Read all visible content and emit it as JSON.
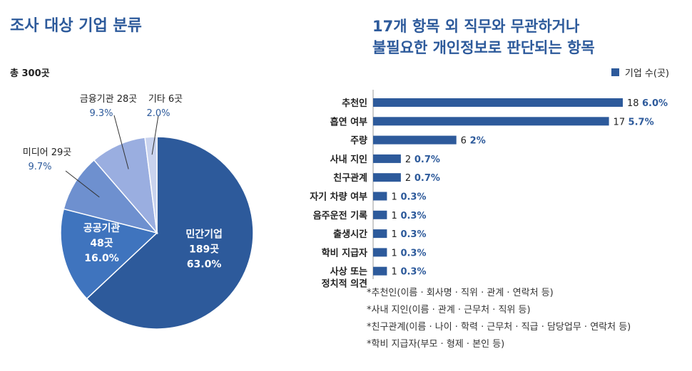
{
  "pie": {
    "title": "조사 대상 기업 분류",
    "total": "총 300곳"
  },
  "bar": {
    "title_line1": "17개 항목 외 직무와 무관하거나",
    "title_line2": "불필요한 개인정보로 판단되는 항목",
    "legend": "기업 수(곳)"
  },
  "notes": [
    "*추천인(이름 · 회사명 · 직위 · 관계 · 연락처 등)",
    "*사내 지인(이름 · 관계 · 근무처 · 직위 등)",
    "*친구관계(이름 · 나이 · 학력 · 근무처 · 직급 · 담당업무 · 연락처 등)",
    "*학비 지급자(부모 · 형제 · 본인 등)"
  ],
  "colors": {
    "accent": "#2d5a9b",
    "pie": [
      "#2d5a9b",
      "#3f74be",
      "#6e90cf",
      "#9aaee0",
      "#c9d3ee"
    ]
  },
  "chart_data": [
    {
      "type": "pie",
      "title": "조사 대상 기업 분류",
      "total_label": "총 300곳",
      "slices": [
        {
          "name": "민간기업",
          "count_label": "189곳",
          "value": 189,
          "percent_label": "63.0%"
        },
        {
          "name": "공공기관",
          "count_label": "48곳",
          "value": 48,
          "percent_label": "16.0%"
        },
        {
          "name": "미디어",
          "count_label": "29곳",
          "value": 29,
          "percent_label": "9.7%"
        },
        {
          "name": "금융기관",
          "count_label": "28곳",
          "value": 28,
          "percent_label": "9.3%"
        },
        {
          "name": "기타",
          "count_label": "6곳",
          "value": 6,
          "percent_label": "2.0%"
        }
      ]
    },
    {
      "type": "bar",
      "orientation": "horizontal",
      "title": "17개 항목 외 직무와 무관하거나 불필요한 개인정보로 판단되는 항목",
      "legend": "기업 수(곳)",
      "xlim": [
        0,
        18
      ],
      "categories": [
        "추천인",
        "흡연 여부",
        "주량",
        "사내 지인",
        "친구관계",
        "자기 차량 여부",
        "음주운전 기록",
        "출생시간",
        "학비 지급자",
        "사상 또는|정치적 의견"
      ],
      "values": [
        18,
        17,
        6,
        2,
        2,
        1,
        1,
        1,
        1,
        1
      ],
      "percent_labels": [
        "6.0%",
        "5.7%",
        "2%",
        "0.7%",
        "0.7%",
        "0.3%",
        "0.3%",
        "0.3%",
        "0.3%",
        "0.3%"
      ]
    }
  ]
}
